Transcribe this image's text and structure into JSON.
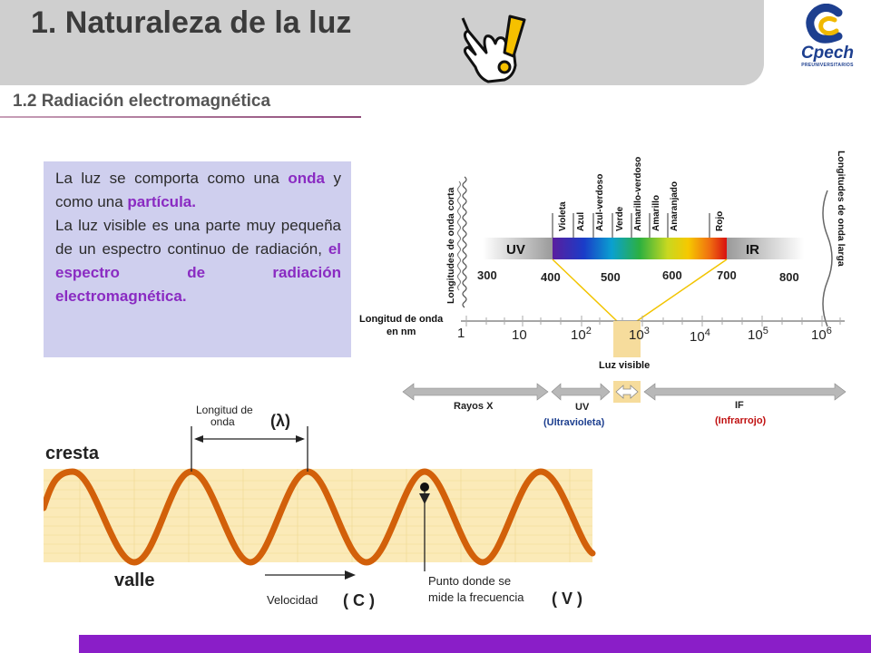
{
  "header": {
    "title": "1. Naturaleza de la luz",
    "logo_text": "Cpech",
    "logo_subtext": "PREUNIVERSITARIOS",
    "icon": "hand-pointer-exclamation-icon"
  },
  "subtitle": "1.2 Radiación electromagnética",
  "textbox": {
    "l1_a": "La luz se comporta como una ",
    "l1_onda": "onda",
    "l1_b": " y como una ",
    "l1_particula": "partícula.",
    "l2_a": "La luz visible es una parte muy pequeña de un espectro continuo de radiación, ",
    "l2_hl": "el espectro de radiación electromagnética."
  },
  "spectrum": {
    "colors": [
      "Violeta",
      "Azul",
      "Azul-verdoso",
      "Verde",
      "Amarillo-verdoso",
      "Amarillo",
      "Anaranjado",
      "Rojo"
    ],
    "short_label": "Longitudes de onda corta",
    "long_label": "Longitudes de onda larga",
    "uv": "UV",
    "ir": "IR",
    "nm_ticks": [
      "300",
      "400",
      "500",
      "600",
      "700",
      "800"
    ],
    "axis_label_1": "Longitud de onda",
    "axis_label_2": "en nm",
    "log_ticks": [
      {
        "base": "1",
        "exp": ""
      },
      {
        "base": "10",
        "exp": ""
      },
      {
        "base": "10",
        "exp": "2"
      },
      {
        "base": "10",
        "exp": "3"
      },
      {
        "base": "10",
        "exp": "4"
      },
      {
        "base": "10",
        "exp": "5"
      },
      {
        "base": "10",
        "exp": "6"
      }
    ],
    "visible_label": "Luz visible",
    "bands": {
      "xray": "Rayos X",
      "uv": "UV",
      "uv_full": "(Ultravioleta)",
      "if": "IF",
      "if_full": "(Infrarrojo)"
    }
  },
  "wave": {
    "cresta": "cresta",
    "valle": "valle",
    "wavelength_1": "Longitud de",
    "wavelength_2": "onda",
    "lambda": "(λ)",
    "velocidad": "Velocidad",
    "c": "( C )",
    "punto_1": "Punto donde se",
    "punto_2": "mide la frecuencia",
    "v": "( V )"
  },
  "colors": {
    "header_bg": "#cfcfcf",
    "highlight": "#8a2bc2",
    "footer": "#8a1ec8",
    "textbox_bg": "#cfcfee",
    "wave_bg": "#fbeab8",
    "wave_line": "#d2600a"
  }
}
